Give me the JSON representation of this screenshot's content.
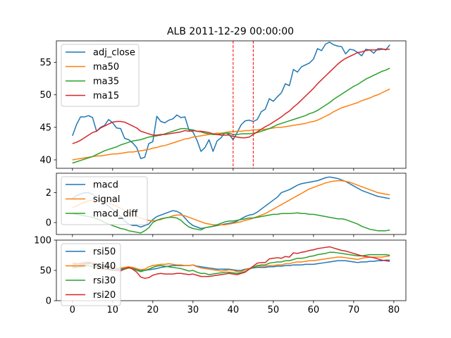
{
  "title": "ALB 2011-12-29 00:00:00",
  "colors": {
    "c0": "#1f77b4",
    "c1": "#ff7f0e",
    "c2": "#2ca02c",
    "c3": "#d62728",
    "vline": "#ff0000"
  },
  "chart_data": [
    {
      "type": "line",
      "panel": "price",
      "xlim": [
        -4,
        83
      ],
      "ylim": [
        38.7,
        58.3
      ],
      "yticks": [
        40,
        45,
        50,
        55
      ],
      "xticks": [
        0,
        10,
        20,
        30,
        40,
        50,
        60,
        70,
        80
      ],
      "show_xtick_labels": false,
      "legend": "top-left",
      "vlines": [
        40,
        45
      ],
      "series": [
        {
          "name": "adj_close",
          "color_key": "c0",
          "values": [
            43.7,
            45.4,
            46.6,
            46.6,
            46.8,
            46.5,
            44.4,
            45.0,
            45.3,
            46.2,
            45.7,
            44.9,
            44.8,
            43.3,
            43.1,
            42.6,
            41.9,
            40.2,
            40.4,
            42.5,
            42.8,
            46.7,
            45.9,
            45.7,
            46.1,
            46.3,
            46.9,
            46.5,
            46.6,
            44.6,
            44.3,
            43.0,
            41.3,
            41.9,
            43.1,
            41.3,
            42.9,
            43.4,
            44.2,
            43.9,
            43.1,
            44.2,
            45.4,
            46.0,
            46.1,
            45.9,
            46.2,
            47.4,
            47.8,
            49.4,
            49.0,
            49.7,
            50.3,
            51.7,
            51.4,
            53.9,
            53.5,
            54.3,
            54.6,
            54.9,
            55.5,
            57.1,
            56.8,
            57.8,
            58.1,
            57.7,
            57.5,
            57.4,
            56.3,
            57.0,
            56.9,
            56.5,
            56.0,
            57.0,
            56.9,
            56.4,
            57.1,
            57.1,
            56.9,
            57.7
          ]
        },
        {
          "name": "ma50",
          "color_key": "c1",
          "values": [
            40.0,
            40.1,
            40.2,
            40.3,
            40.4,
            40.5,
            40.6,
            40.6,
            40.7,
            40.8,
            40.9,
            40.9,
            41.0,
            41.1,
            41.2,
            41.2,
            41.3,
            41.4,
            41.5,
            41.6,
            41.8,
            41.9,
            42.1,
            42.2,
            42.4,
            42.6,
            42.8,
            43.0,
            43.2,
            43.3,
            43.5,
            43.6,
            43.7,
            43.8,
            43.9,
            44.0,
            44.1,
            44.1,
            44.2,
            44.3,
            44.3,
            44.4,
            44.4,
            44.5,
            44.5,
            44.6,
            44.6,
            44.7,
            44.7,
            44.8,
            44.9,
            45.0,
            45.0,
            45.1,
            45.2,
            45.3,
            45.4,
            45.5,
            45.6,
            45.8,
            45.9,
            46.1,
            46.4,
            46.7,
            47.0,
            47.4,
            47.7,
            48.0,
            48.2,
            48.4,
            48.6,
            48.8,
            49.1,
            49.3,
            49.5,
            49.8,
            50.0,
            50.3,
            50.6,
            50.9
          ]
        },
        {
          "name": "ma35",
          "color_key": "c2",
          "values": [
            39.5,
            39.7,
            39.9,
            40.1,
            40.3,
            40.5,
            40.8,
            41.1,
            41.4,
            41.6,
            41.8,
            42.0,
            42.3,
            42.5,
            42.7,
            42.9,
            43.0,
            43.1,
            43.3,
            43.5,
            43.6,
            43.7,
            43.8,
            44.0,
            44.2,
            44.4,
            44.6,
            44.8,
            44.8,
            44.7,
            44.6,
            44.4,
            44.3,
            44.1,
            44.0,
            43.9,
            43.9,
            44.0,
            44.1,
            44.1,
            43.9,
            43.9,
            44.0,
            44.0,
            44.0,
            44.1,
            44.2,
            44.4,
            44.6,
            44.8,
            45.1,
            45.4,
            45.6,
            45.8,
            46.0,
            46.2,
            46.4,
            46.6,
            46.8,
            47.1,
            47.3,
            47.6,
            48.0,
            48.4,
            48.8,
            49.3,
            49.7,
            50.1,
            50.5,
            50.9,
            51.3,
            51.6,
            52.0,
            52.4,
            52.7,
            53.0,
            53.3,
            53.6,
            53.8,
            54.1
          ]
        },
        {
          "name": "ma15",
          "color_key": "c3",
          "values": [
            42.5,
            42.7,
            43.0,
            43.4,
            43.8,
            44.2,
            44.4,
            44.9,
            45.2,
            45.5,
            45.8,
            45.9,
            45.9,
            45.8,
            45.5,
            45.2,
            44.9,
            44.4,
            44.2,
            44.0,
            43.8,
            43.8,
            43.9,
            43.9,
            44.0,
            44.1,
            44.2,
            44.3,
            44.5,
            44.4,
            44.5,
            44.4,
            44.4,
            44.3,
            44.2,
            44.0,
            43.9,
            43.8,
            43.8,
            43.8,
            43.6,
            43.5,
            43.4,
            43.4,
            43.5,
            43.9,
            44.3,
            44.7,
            45.1,
            45.4,
            45.8,
            46.2,
            46.6,
            47.1,
            47.5,
            48.1,
            48.6,
            49.2,
            49.8,
            50.4,
            51.0,
            51.7,
            52.3,
            52.9,
            53.5,
            54.1,
            54.7,
            55.2,
            55.6,
            55.9,
            56.2,
            56.5,
            56.6,
            56.8,
            56.9,
            56.9,
            56.9,
            57.0,
            57.0,
            57.0
          ]
        }
      ]
    },
    {
      "type": "line",
      "panel": "macd",
      "xlim": [
        -4,
        83
      ],
      "ylim": [
        -0.8,
        3.3
      ],
      "yticks": [
        0,
        2
      ],
      "xticks": [
        0,
        10,
        20,
        30,
        40,
        50,
        60,
        70,
        80
      ],
      "show_xtick_labels": false,
      "legend": "top-left",
      "series": [
        {
          "name": "macd",
          "color_key": "c0",
          "values": [
            1.6,
            1.8,
            1.9,
            2.0,
            2.0,
            1.9,
            1.7,
            1.5,
            1.3,
            1.1,
            0.9,
            0.6,
            0.4,
            0.1,
            -0.1,
            -0.2,
            -0.2,
            -0.3,
            -0.2,
            -0.1,
            0.2,
            0.4,
            0.5,
            0.6,
            0.7,
            0.8,
            0.75,
            0.6,
            0.3,
            0.0,
            -0.2,
            -0.3,
            -0.4,
            -0.35,
            -0.3,
            -0.25,
            -0.2,
            -0.15,
            -0.1,
            -0.05,
            0.0,
            0.1,
            0.25,
            0.4,
            0.5,
            0.55,
            0.7,
            0.9,
            1.1,
            1.3,
            1.5,
            1.7,
            2.0,
            2.1,
            2.2,
            2.35,
            2.5,
            2.6,
            2.65,
            2.7,
            2.75,
            2.8,
            2.9,
            3.0,
            3.05,
            3.0,
            2.95,
            2.85,
            2.75,
            2.6,
            2.45,
            2.3,
            2.15,
            2.05,
            1.95,
            1.85,
            1.75,
            1.7,
            1.65,
            1.6
          ]
        },
        {
          "name": "signal",
          "color_key": "c1",
          "values": [
            1.0,
            1.1,
            1.25,
            1.35,
            1.45,
            1.5,
            1.5,
            1.45,
            1.4,
            1.3,
            1.2,
            1.1,
            0.95,
            0.8,
            0.65,
            0.5,
            0.4,
            0.3,
            0.2,
            0.15,
            0.1,
            0.15,
            0.2,
            0.3,
            0.35,
            0.45,
            0.5,
            0.5,
            0.45,
            0.35,
            0.25,
            0.15,
            0.05,
            -0.05,
            -0.1,
            -0.15,
            -0.15,
            -0.15,
            -0.15,
            -0.1,
            -0.05,
            0.0,
            0.05,
            0.15,
            0.2,
            0.3,
            0.4,
            0.5,
            0.6,
            0.75,
            0.9,
            1.05,
            1.2,
            1.35,
            1.5,
            1.65,
            1.8,
            1.95,
            2.1,
            2.25,
            2.35,
            2.45,
            2.55,
            2.65,
            2.72,
            2.77,
            2.8,
            2.8,
            2.75,
            2.7,
            2.6,
            2.5,
            2.4,
            2.3,
            2.2,
            2.1,
            2.0,
            1.95,
            1.9,
            1.85
          ]
        },
        {
          "name": "macd_diff",
          "color_key": "c2",
          "values": [
            0.6,
            0.55,
            0.5,
            0.45,
            0.4,
            0.35,
            0.25,
            0.15,
            0.0,
            -0.1,
            -0.2,
            -0.3,
            -0.4,
            -0.45,
            -0.55,
            -0.6,
            -0.65,
            -0.7,
            -0.55,
            -0.35,
            0.0,
            0.15,
            0.25,
            0.3,
            0.35,
            0.35,
            0.3,
            0.15,
            -0.1,
            -0.3,
            -0.4,
            -0.45,
            -0.5,
            -0.35,
            -0.3,
            -0.25,
            -0.15,
            -0.05,
            0.05,
            0.1,
            0.1,
            0.15,
            0.2,
            0.25,
            0.3,
            0.3,
            0.35,
            0.4,
            0.45,
            0.5,
            0.55,
            0.55,
            0.6,
            0.6,
            0.6,
            0.62,
            0.65,
            0.6,
            0.6,
            0.55,
            0.55,
            0.5,
            0.45,
            0.4,
            0.35,
            0.3,
            0.25,
            0.25,
            0.2,
            0.1,
            0.0,
            -0.1,
            -0.25,
            -0.35,
            -0.45,
            -0.5,
            -0.55,
            -0.55,
            -0.55,
            -0.5
          ]
        }
      ]
    },
    {
      "type": "line",
      "panel": "rsi",
      "xlim": [
        -4,
        83
      ],
      "ylim": [
        0,
        100
      ],
      "yticks": [
        0,
        50,
        100
      ],
      "xticks": [
        0,
        10,
        20,
        30,
        40,
        50,
        60,
        70,
        80
      ],
      "show_xtick_labels": true,
      "legend": "top-left",
      "series": [
        {
          "name": "rsi50",
          "color_key": "c0",
          "values": [
            56,
            57,
            59,
            60,
            61,
            61,
            59,
            58,
            57,
            56,
            54,
            52,
            52,
            53,
            54,
            54,
            52,
            50,
            50,
            51,
            52,
            53,
            55,
            56,
            57,
            58,
            58,
            58,
            58,
            58,
            59,
            57,
            56,
            55,
            54,
            53,
            52,
            52,
            52,
            52,
            51,
            50,
            50,
            52,
            53,
            54,
            55,
            55,
            55,
            56,
            56,
            57,
            57,
            58,
            58,
            59,
            59,
            59,
            60,
            60,
            60,
            61,
            62,
            63,
            64,
            65,
            66,
            66,
            66,
            65,
            64,
            63,
            64,
            64,
            65,
            65,
            66,
            66,
            67,
            67
          ]
        },
        {
          "name": "rsi40",
          "color_key": "c1",
          "values": [
            59,
            60,
            62,
            63,
            64,
            63,
            61,
            60,
            59,
            58,
            56,
            54,
            54,
            55,
            56,
            55,
            53,
            51,
            52,
            56,
            58,
            59,
            60,
            60,
            61,
            60,
            59,
            59,
            58,
            58,
            59,
            56,
            54,
            53,
            52,
            51,
            50,
            49,
            50,
            51,
            50,
            48,
            48,
            51,
            53,
            55,
            57,
            57,
            57,
            58,
            58,
            59,
            59,
            61,
            61,
            63,
            64,
            64,
            65,
            66,
            66,
            67,
            68,
            69,
            70,
            71,
            72,
            72,
            71,
            70,
            69,
            68,
            70,
            71,
            72,
            72,
            72,
            72,
            73,
            74
          ]
        },
        {
          "name": "rsi30",
          "color_key": "c2",
          "values": [
            54,
            55,
            56,
            57,
            58,
            56,
            55,
            53,
            52,
            51,
            50,
            50,
            50,
            52,
            54,
            53,
            50,
            48,
            50,
            52,
            55,
            57,
            58,
            57,
            56,
            55,
            54,
            53,
            51,
            49,
            50,
            47,
            45,
            45,
            43,
            44,
            45,
            46,
            47,
            47,
            46,
            45,
            46,
            48,
            52,
            55,
            58,
            59,
            59,
            62,
            63,
            64,
            64,
            66,
            66,
            68,
            70,
            70,
            71,
            73,
            74,
            76,
            77,
            78,
            80,
            80,
            79,
            78,
            77,
            76,
            75,
            74,
            74,
            75,
            76,
            76,
            76,
            76,
            76,
            75
          ]
        },
        {
          "name": "rsi20",
          "color_key": "c3",
          "values": [
            62,
            61,
            61,
            62,
            63,
            60,
            57,
            55,
            53,
            52,
            51,
            50,
            49,
            53,
            55,
            52,
            47,
            39,
            37,
            38,
            42,
            44,
            45,
            44,
            44,
            44,
            45,
            45,
            44,
            43,
            44,
            42,
            40,
            40,
            40,
            41,
            42,
            43,
            44,
            45,
            44,
            43,
            45,
            47,
            52,
            57,
            62,
            63,
            63,
            69,
            70,
            71,
            70,
            73,
            72,
            79,
            78,
            80,
            81,
            83,
            84,
            86,
            87,
            88,
            89,
            87,
            85,
            83,
            82,
            80,
            78,
            76,
            74,
            73,
            72,
            71,
            69,
            67,
            66,
            65
          ]
        }
      ]
    }
  ]
}
